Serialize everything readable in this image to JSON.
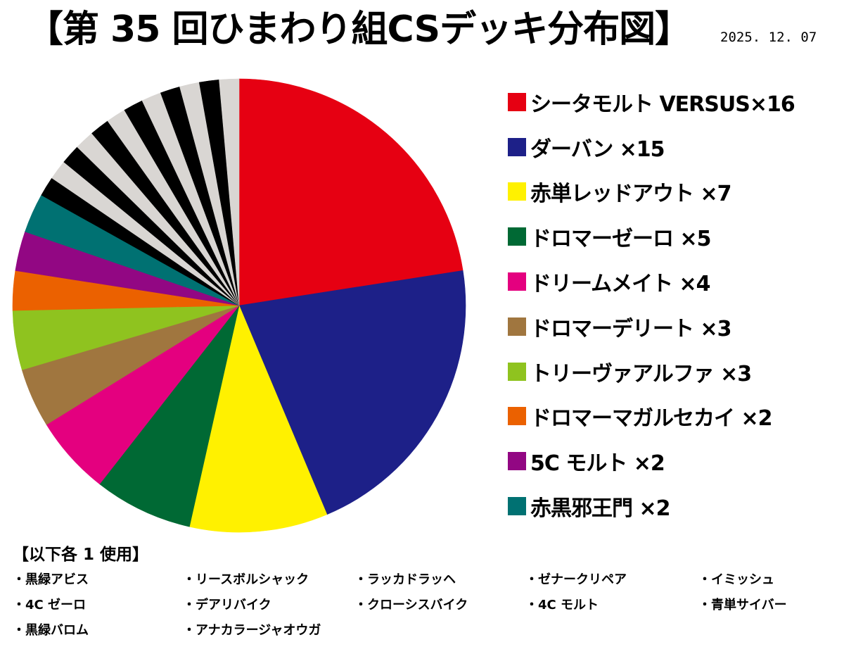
{
  "title": "【第 35 回ひまわり組CSデッキ分布図】",
  "date": "2025. 12. 07",
  "chart_data": {
    "type": "pie",
    "title": "【第 35 回ひまわり組CSデッキ分布図】",
    "slices": [
      {
        "label": "シータモルト VERSUS×16",
        "name": "シータモルト VERSUS",
        "value": 16,
        "color": "#e60012"
      },
      {
        "label": "ダーバン ×15",
        "name": "ダーバン",
        "value": 15,
        "color": "#1d2088"
      },
      {
        "label": "赤単レッドアウト ×7",
        "name": "赤単レッドアウト",
        "value": 7,
        "color": "#fff100"
      },
      {
        "label": "ドロマーゼーロ ×5",
        "name": "ドロマーゼーロ",
        "value": 5,
        "color": "#006934"
      },
      {
        "label": "ドリームメイト ×4",
        "name": "ドリームメイト",
        "value": 4,
        "color": "#e4007f"
      },
      {
        "label": "ドロマーデリート ×3",
        "name": "ドロマーデリート",
        "value": 3,
        "color": "#a0763f"
      },
      {
        "label": "トリーヴァアルファ ×3",
        "name": "トリーヴァアルファ",
        "value": 3,
        "color": "#8fc31f"
      },
      {
        "label": "ドロマーマガルセカイ ×2",
        "name": "ドロマーマガルセカイ",
        "value": 2,
        "color": "#eb6100"
      },
      {
        "label": "5C モルト ×2",
        "name": "5C モルト",
        "value": 2,
        "color": "#920783"
      },
      {
        "label": "赤黒邪王門 ×2",
        "name": "赤黒邪王門",
        "value": 2,
        "color": "#007172"
      },
      {
        "name": "ラッカドラッヘ",
        "value": 1,
        "color": "#000000"
      },
      {
        "name": "リースボルシャック",
        "value": 1,
        "color": "#d9d6d3"
      },
      {
        "name": "黒緑アビス",
        "value": 1,
        "color": "#000000"
      },
      {
        "name": "ゼナークリペア",
        "value": 1,
        "color": "#d9d6d3"
      },
      {
        "name": "イミッシュ",
        "value": 1,
        "color": "#000000"
      },
      {
        "name": "4C ゼーロ",
        "value": 1,
        "color": "#d9d6d3"
      },
      {
        "name": "デアリバイク",
        "value": 1,
        "color": "#000000"
      },
      {
        "name": "クローシスバイク",
        "value": 1,
        "color": "#d9d6d3"
      },
      {
        "name": "4C モルト",
        "value": 1,
        "color": "#000000"
      },
      {
        "name": "青単サイバー",
        "value": 1,
        "color": "#d9d6d3"
      },
      {
        "name": "黒緑バロム",
        "value": 1,
        "color": "#000000"
      },
      {
        "name": "アナカラージャオウガ",
        "value": 1,
        "color": "#d9d6d3"
      }
    ],
    "legend_placement": "right",
    "start_angle_deg": 0,
    "direction": "clockwise"
  },
  "legend": [
    {
      "label": "シータモルト VERSUS×16",
      "color": "#e60012"
    },
    {
      "label": "ダーバン ×15",
      "color": "#1d2088"
    },
    {
      "label": "赤単レッドアウト ×7",
      "color": "#fff100"
    },
    {
      "label": "ドロマーゼーロ ×5",
      "color": "#006934"
    },
    {
      "label": "ドリームメイト ×4",
      "color": "#e4007f"
    },
    {
      "label": "ドロマーデリート ×3",
      "color": "#a0763f"
    },
    {
      "label": "トリーヴァアルファ ×3",
      "color": "#8fc31f"
    },
    {
      "label": "ドロマーマガルセカイ ×2",
      "color": "#eb6100"
    },
    {
      "label": "5C モルト ×2",
      "color": "#920783"
    },
    {
      "label": "赤黒邪王門 ×2",
      "color": "#007172"
    }
  ],
  "others": {
    "heading": "【以下各 1 使用】",
    "items": [
      "・黒緑アビス",
      "・リースボルシャック",
      "・ラッカドラッヘ",
      "・ゼナークリペア",
      "・イミッシュ",
      "・4C ゼーロ",
      "・デアリバイク",
      "・クローシスバイク",
      "・4C モルト",
      "・青単サイバー",
      "・黒緑バロム",
      "・アナカラージャオウガ"
    ]
  }
}
